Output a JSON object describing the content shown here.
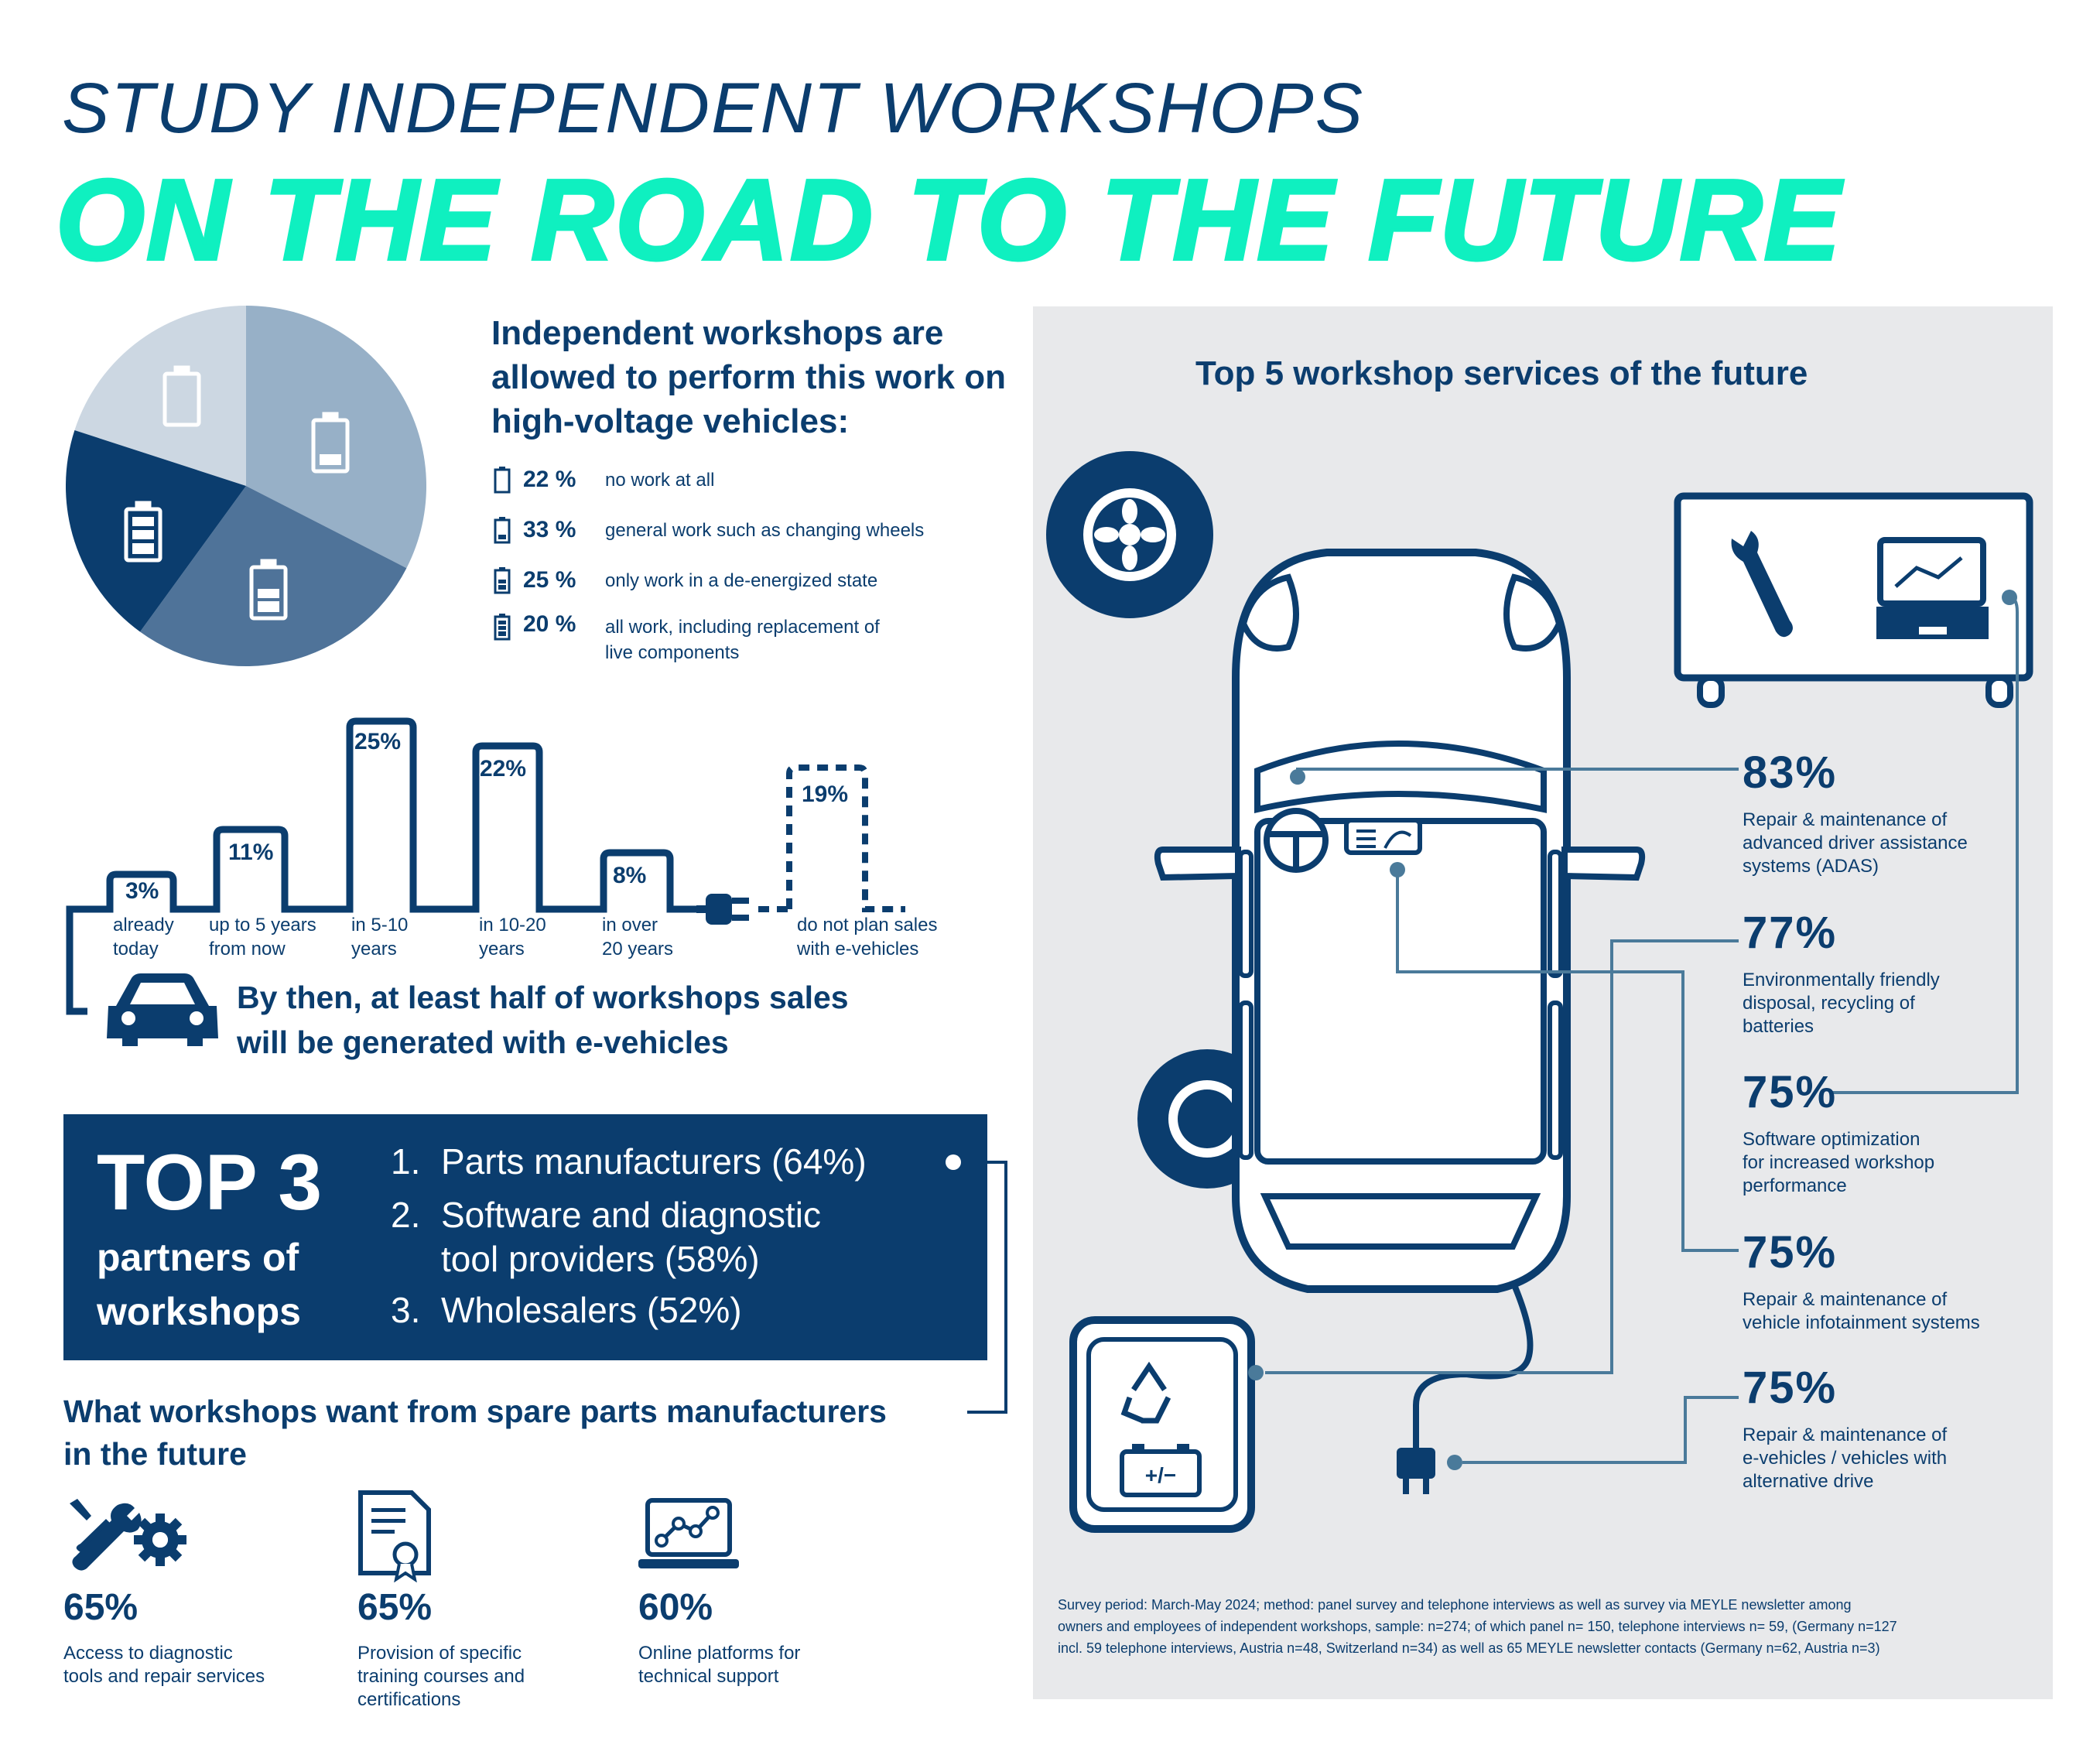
{
  "header": {
    "title_line1": "STUDY INDEPENDENT WORKSHOPS",
    "title_line2": "ON THE ROAD TO THE FUTURE"
  },
  "pie": {
    "title": "Independent workshops are allowed to perform this work on high-voltage vehicles:",
    "legend": [
      {
        "pct": "22 %",
        "text": "no work at all",
        "value": 22,
        "color": "#ccd7e2"
      },
      {
        "pct": "33 %",
        "text": "general work such as changing wheels",
        "value": 33,
        "color": "#97b0c7"
      },
      {
        "pct": "25 %",
        "text": "only work in a de-energized state",
        "value": 25,
        "color": "#4f7399"
      },
      {
        "pct": "20 %",
        "text": "all work, including replacement of live components",
        "value": 20,
        "color": "#0b3d6e"
      }
    ]
  },
  "ev_sales": {
    "bars": [
      {
        "pct": "3%",
        "label1": "already",
        "label2": "today"
      },
      {
        "pct": "11%",
        "label1": "up to 5 years",
        "label2": "from now"
      },
      {
        "pct": "25%",
        "label1": "in 5-10",
        "label2": "years"
      },
      {
        "pct": "22%",
        "label1": "in 10-20",
        "label2": "years"
      },
      {
        "pct": "8%",
        "label1": "in over",
        "label2": "20 years"
      },
      {
        "pct": "19%",
        "label1": "do not plan sales",
        "label2": "with e-vehicles"
      }
    ],
    "caption_line1": "By then, at least half of workshops sales",
    "caption_line2": "will be generated with e-vehicles"
  },
  "top3": {
    "title": "TOP 3",
    "sub1": "partners of",
    "sub2": "workshops",
    "items": [
      {
        "num": "1.",
        "text": "Parts manufacturers (64%)"
      },
      {
        "num": "2.",
        "text": "Software and diagnostic"
      },
      {
        "num": "",
        "text": "tool providers (58%)"
      },
      {
        "num": "3.",
        "text": "Wholesalers (52%)"
      }
    ]
  },
  "wants": {
    "title_line1": "What workshops want from spare parts manufacturers",
    "title_line2": "in the future",
    "items": [
      {
        "pct": "65%",
        "lines": [
          "Access to diagnostic",
          "tools and repair services"
        ],
        "icon": "tools-gear-icon"
      },
      {
        "pct": "65%",
        "lines": [
          "Provision of specific",
          "training courses and",
          "certifications"
        ],
        "icon": "certificate-icon"
      },
      {
        "pct": "60%",
        "lines": [
          "Online platforms for",
          "technical support"
        ],
        "icon": "laptop-chart-icon"
      }
    ]
  },
  "services": {
    "title": "Top 5 workshop services of the future",
    "items": [
      {
        "pct": "83%",
        "lines": [
          "Repair & maintenance of",
          "advanced driver assistance",
          "systems (ADAS)"
        ]
      },
      {
        "pct": "77%",
        "lines": [
          "Environmentally friendly",
          "disposal, recycling of",
          "batteries"
        ]
      },
      {
        "pct": "75%",
        "lines": [
          "Software optimization",
          "for increased workshop",
          "performance"
        ]
      },
      {
        "pct": "75%",
        "lines": [
          "Repair & maintenance of",
          "vehicle infotainment systems"
        ]
      },
      {
        "pct": "75%",
        "lines": [
          "Repair & maintenance of",
          "e-vehicles / vehicles with",
          "alternative drive"
        ]
      }
    ]
  },
  "footnote": {
    "line1": "Survey period: March-May 2024; method: panel survey and telephone interviews as well as survey via MEYLE newsletter among",
    "line2": "owners and employees of independent workshops, sample: n=274; of which panel n= 150, telephone interviews n= 59, (Germany n=127",
    "line3": "incl. 59 telephone interviews, Austria n=48, Switzerland n=34) as well as 65 MEYLE newsletter contacts (Germany n=62, Austria n=3)"
  },
  "colors": {
    "navy": "#0b3d6e",
    "mint": "#0ff0c0",
    "panel": "#e8e9eb",
    "connector": "#4a7a9a"
  }
}
